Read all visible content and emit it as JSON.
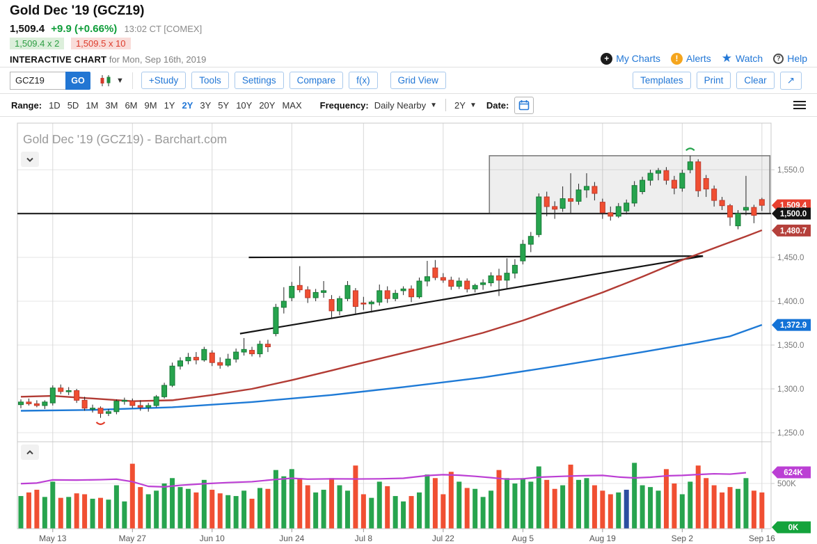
{
  "header": {
    "title": "Gold Dec '19 (GCZ19)",
    "last_price": "1,509.4",
    "change": "+9.9 (+0.66%)",
    "quote_time": "13:02 CT [COMEX]",
    "bid": "1,509.4 x 2",
    "ask": "1,509.5 x 10",
    "chart_label": "INTERACTIVE CHART",
    "chart_label_suffix": "for Mon, Sep 16th, 2019",
    "links": {
      "my_charts": "My Charts",
      "alerts": "Alerts",
      "watch": "Watch",
      "help": "Help"
    }
  },
  "toolbar": {
    "symbol_value": "GCZ19",
    "go_label": "GO",
    "buttons_left": [
      "+Study",
      "Tools",
      "Settings",
      "Compare",
      "f(x)",
      "Grid View"
    ],
    "buttons_right": [
      "Templates",
      "Print",
      "Clear"
    ],
    "expand_icon": "↗"
  },
  "rangebar": {
    "range_label": "Range:",
    "ranges": [
      "1D",
      "5D",
      "1M",
      "3M",
      "6M",
      "9M",
      "1Y",
      "2Y",
      "3Y",
      "5Y",
      "10Y",
      "20Y",
      "MAX"
    ],
    "selected_range": "2Y",
    "frequency_label": "Frequency:",
    "frequency_value": "Daily Nearby",
    "period_value": "2Y",
    "date_label": "Date:"
  },
  "chart": {
    "watermark": "Gold Dec '19 (GCZ19) - Barchart.com",
    "y_ticks": [
      {
        "label": "1,550.0",
        "price": 1550
      },
      {
        "label": "1,450.0",
        "price": 1450
      },
      {
        "label": "1,400.0",
        "price": 1400
      },
      {
        "label": "1,350.0",
        "price": 1350
      },
      {
        "label": "1,300.0",
        "price": 1300
      },
      {
        "label": "1,250.0",
        "price": 1250
      }
    ],
    "grid_prices": [
      1550,
      1500,
      1450,
      1400,
      1350,
      1300,
      1250
    ],
    "y_badges": [
      {
        "label": "1,509.4",
        "price": 1509.4,
        "bg": "#e8402f"
      },
      {
        "label": "1,480.7",
        "price": 1480.7,
        "bg": "#b5403b"
      },
      {
        "label": "1,500.0",
        "price": 1500.0,
        "bg": "#141414"
      },
      {
        "label": "1,372.9",
        "price": 1372.9,
        "bg": "#1372d6"
      }
    ],
    "vol_ticks": [
      {
        "label": "500K",
        "v": 500
      }
    ],
    "vol_badges": [
      {
        "label": "624K",
        "v": 624,
        "bg": "#bb3fd4"
      },
      {
        "label": "0K",
        "v": 0,
        "bg": "#14a33c"
      }
    ],
    "x_ticks": [
      {
        "label": "May 13",
        "i": 4
      },
      {
        "label": "May 27",
        "i": 14
      },
      {
        "label": "Jun 10",
        "i": 24
      },
      {
        "label": "Jun 24",
        "i": 34
      },
      {
        "label": "Jul 8",
        "i": 43
      },
      {
        "label": "Jul 22",
        "i": 53
      },
      {
        "label": "Aug 5",
        "i": 63
      },
      {
        "label": "Aug 19",
        "i": 73
      },
      {
        "label": "Sep 2",
        "i": 83
      },
      {
        "label": "Sep 16",
        "i": 93
      }
    ]
  },
  "chart_data": {
    "type": "candlestick",
    "title": "Gold Dec '19 (GCZ19) - Barchart.com",
    "price_axis_range": [
      1245,
      1600
    ],
    "volume_axis_range_k": [
      0,
      800
    ],
    "x_range": [
      "May 7, 2019",
      "Sep 16, 2019"
    ],
    "colors": {
      "up": "#27a44e",
      "up_border": "#157a35",
      "down": "#f04f32",
      "down_border": "#c0392b",
      "wick": "#222222",
      "ma_fast": "#b23b34",
      "ma_slow": "#1e7ad6",
      "open_interest": "#bc3fd4",
      "volume_blue": "#2b4ea0",
      "annotation": "#1a1a1a"
    },
    "candles": [
      [
        "May 7",
        1282,
        1288,
        1278,
        1285,
        360
      ],
      [
        "May 8",
        1285,
        1289,
        1281,
        1283,
        400
      ],
      [
        "May 9",
        1283,
        1287,
        1279,
        1281,
        430
      ],
      [
        "May 10",
        1281,
        1287,
        1277,
        1285,
        350
      ],
      [
        "May 13",
        1284,
        1304,
        1281,
        1301,
        520
      ],
      [
        "May 14",
        1301,
        1305,
        1294,
        1297,
        340
      ],
      [
        "May 15",
        1297,
        1302,
        1293,
        1298,
        350
      ],
      [
        "May 16",
        1298,
        1300,
        1284,
        1287,
        390
      ],
      [
        "May 17",
        1287,
        1291,
        1275,
        1278,
        380
      ],
      [
        "May 20",
        1277,
        1282,
        1273,
        1278,
        330
      ],
      [
        "May 21",
        1278,
        1280,
        1267,
        1272,
        340
      ],
      [
        "May 22",
        1272,
        1277,
        1269,
        1274,
        320
      ],
      [
        "May 23",
        1274,
        1288,
        1271,
        1286,
        480
      ],
      [
        "May 24",
        1286,
        1290,
        1282,
        1287,
        300
      ],
      [
        "May 27",
        1286,
        1289,
        1278,
        1281,
        720
      ],
      [
        "May 28",
        1281,
        1287,
        1275,
        1279,
        460
      ],
      [
        "May 29",
        1279,
        1284,
        1274,
        1281,
        380
      ],
      [
        "May 30",
        1281,
        1293,
        1279,
        1291,
        420
      ],
      [
        "May 31",
        1291,
        1307,
        1289,
        1304,
        500
      ],
      [
        "Jun 3",
        1304,
        1330,
        1302,
        1326,
        560
      ],
      [
        "Jun 4",
        1326,
        1336,
        1322,
        1332,
        460
      ],
      [
        "Jun 5",
        1332,
        1341,
        1328,
        1336,
        440
      ],
      [
        "Jun 6",
        1336,
        1342,
        1328,
        1333,
        400
      ],
      [
        "Jun 7",
        1333,
        1348,
        1331,
        1345,
        540
      ],
      [
        "Jun 10",
        1341,
        1344,
        1326,
        1330,
        430
      ],
      [
        "Jun 11",
        1330,
        1336,
        1323,
        1327,
        390
      ],
      [
        "Jun 12",
        1327,
        1340,
        1325,
        1334,
        370
      ],
      [
        "Jun 13",
        1334,
        1346,
        1330,
        1342,
        360
      ],
      [
        "Jun 14",
        1342,
        1358,
        1338,
        1345,
        420
      ],
      [
        "Jun 17",
        1344,
        1348,
        1337,
        1340,
        330
      ],
      [
        "Jun 18",
        1340,
        1355,
        1336,
        1351,
        450
      ],
      [
        "Jun 19",
        1351,
        1356,
        1342,
        1348,
        440
      ],
      [
        "Jun 20",
        1363,
        1397,
        1360,
        1393,
        650
      ],
      [
        "Jun 21",
        1393,
        1416,
        1386,
        1400,
        580
      ],
      [
        "Jun 24",
        1404,
        1422,
        1400,
        1417,
        660
      ],
      [
        "Jun 25",
        1418,
        1440,
        1410,
        1413,
        560
      ],
      [
        "Jun 26",
        1413,
        1417,
        1398,
        1404,
        480
      ],
      [
        "Jun 27",
        1404,
        1414,
        1400,
        1410,
        400
      ],
      [
        "Jun 28",
        1410,
        1423,
        1404,
        1412,
        430
      ],
      [
        "Jul 1",
        1402,
        1407,
        1381,
        1389,
        560
      ],
      [
        "Jul 2",
        1389,
        1406,
        1384,
        1403,
        480
      ],
      [
        "Jul 3",
        1403,
        1423,
        1400,
        1418,
        420
      ],
      [
        "Jul 5",
        1412,
        1415,
        1386,
        1394,
        700
      ],
      [
        "Jul 8",
        1398,
        1405,
        1390,
        1397,
        380
      ],
      [
        "Jul 9",
        1397,
        1401,
        1387,
        1399,
        340
      ],
      [
        "Jul 10",
        1399,
        1419,
        1395,
        1412,
        520
      ],
      [
        "Jul 11",
        1412,
        1417,
        1398,
        1403,
        470
      ],
      [
        "Jul 12",
        1403,
        1413,
        1400,
        1409,
        360
      ],
      [
        "Jul 15",
        1412,
        1417,
        1407,
        1414,
        300
      ],
      [
        "Jul 16",
        1414,
        1418,
        1399,
        1405,
        360
      ],
      [
        "Jul 17",
        1405,
        1427,
        1403,
        1423,
        400
      ],
      [
        "Jul 18",
        1423,
        1446,
        1417,
        1428,
        600
      ],
      [
        "Jul 19",
        1438,
        1447,
        1424,
        1427,
        560
      ],
      [
        "Jul 22",
        1427,
        1432,
        1421,
        1424,
        380
      ],
      [
        "Jul 23",
        1424,
        1428,
        1413,
        1417,
        630
      ],
      [
        "Jul 24",
        1417,
        1427,
        1414,
        1423,
        520
      ],
      [
        "Jul 25",
        1423,
        1426,
        1410,
        1414,
        450
      ],
      [
        "Jul 26",
        1414,
        1420,
        1410,
        1418,
        440
      ],
      [
        "Jul 29",
        1419,
        1425,
        1413,
        1421,
        350
      ],
      [
        "Jul 30",
        1421,
        1433,
        1417,
        1429,
        420
      ],
      [
        "Jul 31",
        1429,
        1437,
        1406,
        1424,
        650
      ],
      [
        "Aug 1",
        1424,
        1449,
        1414,
        1432,
        560
      ],
      [
        "Aug 2",
        1432,
        1448,
        1426,
        1441,
        500
      ],
      [
        "Aug 5",
        1446,
        1470,
        1442,
        1465,
        560
      ],
      [
        "Aug 6",
        1465,
        1479,
        1456,
        1474,
        520
      ],
      [
        "Aug 7",
        1476,
        1523,
        1473,
        1519,
        690
      ],
      [
        "Aug 8",
        1519,
        1525,
        1497,
        1508,
        540
      ],
      [
        "Aug 9",
        1508,
        1514,
        1494,
        1505,
        440
      ],
      [
        "Aug 12",
        1506,
        1531,
        1502,
        1517,
        480
      ],
      [
        "Aug 13",
        1517,
        1546,
        1500,
        1514,
        710
      ],
      [
        "Aug 14",
        1514,
        1534,
        1510,
        1527,
        540
      ],
      [
        "Aug 15",
        1527,
        1546,
        1518,
        1531,
        560
      ],
      [
        "Aug 16",
        1531,
        1536,
        1515,
        1523,
        480
      ],
      [
        "Aug 19",
        1513,
        1517,
        1494,
        1501,
        420
      ],
      [
        "Aug 20",
        1501,
        1508,
        1492,
        1497,
        380
      ],
      [
        "Aug 21",
        1497,
        1512,
        1495,
        1508,
        400
      ],
      [
        "Aug 22",
        1503,
        1516,
        1499,
        1512,
        430
      ],
      [
        "Aug 23",
        1512,
        1537,
        1508,
        1532,
        730
      ],
      [
        "Aug 26",
        1525,
        1542,
        1522,
        1538,
        480
      ],
      [
        "Aug 27",
        1538,
        1550,
        1532,
        1546,
        460
      ],
      [
        "Aug 28",
        1546,
        1552,
        1538,
        1549,
        420
      ],
      [
        "Aug 29",
        1549,
        1553,
        1533,
        1538,
        660
      ],
      [
        "Aug 30",
        1538,
        1543,
        1522,
        1529,
        500
      ],
      [
        "Sep 2",
        1529,
        1550,
        1525,
        1546,
        380
      ],
      [
        "Sep 3",
        1550,
        1566,
        1546,
        1559,
        520
      ],
      [
        "Sep 4",
        1559,
        1562,
        1519,
        1526,
        700
      ],
      [
        "Sep 5",
        1540,
        1544,
        1519,
        1528,
        560
      ],
      [
        "Sep 6",
        1528,
        1532,
        1508,
        1515,
        480
      ],
      [
        "Sep 9",
        1515,
        1519,
        1504,
        1509,
        400
      ],
      [
        "Sep 10",
        1509,
        1511,
        1486,
        1496,
        460
      ],
      [
        "Sep 11",
        1486,
        1504,
        1482,
        1500,
        440
      ],
      [
        "Sep 12",
        1504,
        1543,
        1498,
        1507,
        560
      ],
      [
        "Sep 13",
        1507,
        1510,
        1489,
        1498,
        420
      ],
      [
        "Sep 16",
        1516,
        1518,
        1503,
        1509.4,
        400
      ]
    ],
    "volume_color_overrides": {
      "76": "blue"
    },
    "ma_fast_points": [
      [
        0,
        1291
      ],
      [
        4,
        1292
      ],
      [
        9,
        1289
      ],
      [
        14,
        1286
      ],
      [
        19,
        1287
      ],
      [
        24,
        1293
      ],
      [
        29,
        1300
      ],
      [
        34,
        1310
      ],
      [
        39,
        1321
      ],
      [
        43,
        1330
      ],
      [
        48,
        1341
      ],
      [
        53,
        1352
      ],
      [
        58,
        1364
      ],
      [
        63,
        1378
      ],
      [
        68,
        1394
      ],
      [
        73,
        1410
      ],
      [
        78,
        1428
      ],
      [
        83,
        1447
      ],
      [
        88,
        1464
      ],
      [
        91,
        1474
      ],
      [
        93,
        1481
      ]
    ],
    "ma_slow_points": [
      [
        0,
        1275
      ],
      [
        9,
        1276
      ],
      [
        19,
        1279
      ],
      [
        29,
        1285
      ],
      [
        39,
        1293
      ],
      [
        48,
        1302
      ],
      [
        58,
        1313
      ],
      [
        68,
        1327
      ],
      [
        78,
        1342
      ],
      [
        85,
        1353
      ],
      [
        89,
        1360
      ],
      [
        93,
        1373
      ]
    ],
    "open_interest_points_k": [
      [
        0,
        498
      ],
      [
        2,
        505
      ],
      [
        4,
        540
      ],
      [
        7,
        538
      ],
      [
        10,
        542
      ],
      [
        12,
        548
      ],
      [
        14,
        520
      ],
      [
        16,
        468
      ],
      [
        18,
        462
      ],
      [
        20,
        480
      ],
      [
        23,
        497
      ],
      [
        26,
        510
      ],
      [
        29,
        520
      ],
      [
        32,
        545
      ],
      [
        34,
        558
      ],
      [
        36,
        548
      ],
      [
        39,
        552
      ],
      [
        42,
        550
      ],
      [
        45,
        552
      ],
      [
        48,
        558
      ],
      [
        51,
        588
      ],
      [
        53,
        598
      ],
      [
        55,
        592
      ],
      [
        57,
        580
      ],
      [
        59,
        565
      ],
      [
        61,
        548
      ],
      [
        63,
        552
      ],
      [
        65,
        570
      ],
      [
        68,
        580
      ],
      [
        70,
        585
      ],
      [
        73,
        590
      ],
      [
        75,
        572
      ],
      [
        77,
        562
      ],
      [
        79,
        570
      ],
      [
        81,
        585
      ],
      [
        83,
        590
      ],
      [
        85,
        600
      ],
      [
        87,
        608
      ],
      [
        89,
        604
      ],
      [
        91,
        620
      ]
    ],
    "annotations": {
      "hline_price": 1500,
      "box": {
        "i1": 58.8,
        "i2": 94,
        "p1": 1500,
        "p2": 1566
      },
      "trendlines": [
        {
          "i1": 28.6,
          "p1": 1450,
          "i2": 85.6,
          "p2": 1451.5
        },
        {
          "i1": 27.5,
          "p1": 1363,
          "i2": 85.6,
          "p2": 1451.5
        }
      ],
      "arcs": [
        {
          "i": 10,
          "price": 1262,
          "dir": "down",
          "color": "#e03a28"
        },
        {
          "i": 84,
          "price": 1572,
          "dir": "up",
          "color": "#27a44e"
        }
      ]
    }
  }
}
